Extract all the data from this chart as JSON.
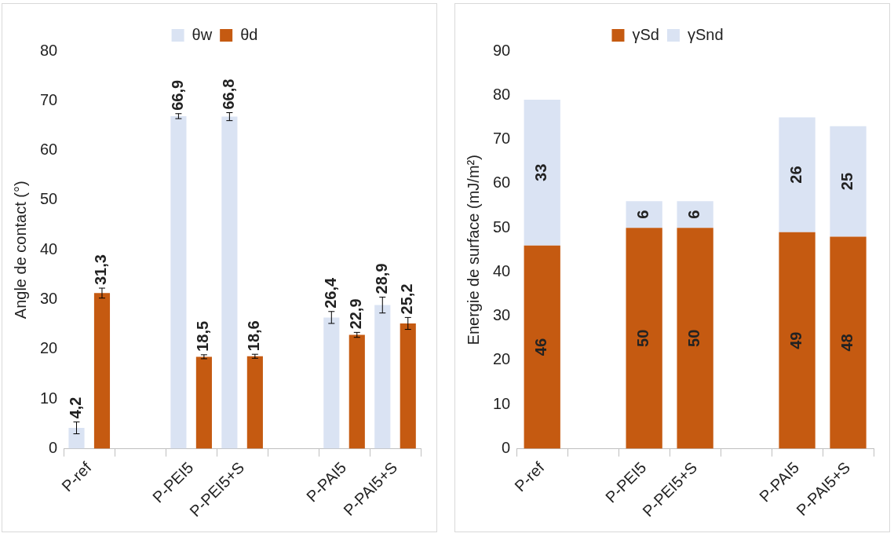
{
  "chart_data": [
    {
      "type": "bar",
      "ylabel": "Angle de contact (°)",
      "categories": [
        "P-ref",
        null,
        "P-PEI5",
        "P-PEI5+S",
        null,
        "P-PAI5",
        "P-PAI5+S"
      ],
      "ylim": [
        0,
        80
      ],
      "yticks": [
        0,
        10,
        20,
        30,
        40,
        50,
        60,
        70,
        80
      ],
      "legend": "top",
      "series": [
        {
          "name": "θw",
          "color": "#dae3f3",
          "values": [
            4.2,
            null,
            66.9,
            66.8,
            null,
            26.4,
            28.9
          ],
          "errors": [
            1.2,
            null,
            0.5,
            0.8,
            null,
            1.2,
            1.6
          ],
          "value_labels": [
            "4,2",
            null,
            "66,9",
            "66,8",
            null,
            "26,4",
            "28,9"
          ]
        },
        {
          "name": "θd",
          "color": "#c55a11",
          "values": [
            31.3,
            null,
            18.5,
            18.6,
            null,
            22.9,
            25.2
          ],
          "errors": [
            1.0,
            null,
            0.4,
            0.4,
            null,
            0.5,
            1.2
          ],
          "value_labels": [
            "31,3",
            null,
            "18,5",
            "18,6",
            null,
            "22,9",
            "25,2"
          ]
        }
      ]
    },
    {
      "type": "bar",
      "stacked": true,
      "data_labels": true,
      "ylabel": "Energie de surface (mJ/m²)",
      "categories": [
        "P-ref",
        null,
        "P-PEI5",
        "P-PEI5+S",
        null,
        "P-PAI5",
        "P-PAI5+S"
      ],
      "ylim": [
        0,
        90
      ],
      "yticks": [
        0,
        10,
        20,
        30,
        40,
        50,
        60,
        70,
        80,
        90
      ],
      "legend": "top",
      "series": [
        {
          "name": "γSd",
          "color": "#c55a11",
          "values": [
            46,
            null,
            50,
            50,
            null,
            49,
            48
          ]
        },
        {
          "name": "γSnd",
          "color": "#dae3f3",
          "values": [
            33,
            null,
            6,
            6,
            null,
            26,
            25
          ]
        }
      ]
    }
  ]
}
